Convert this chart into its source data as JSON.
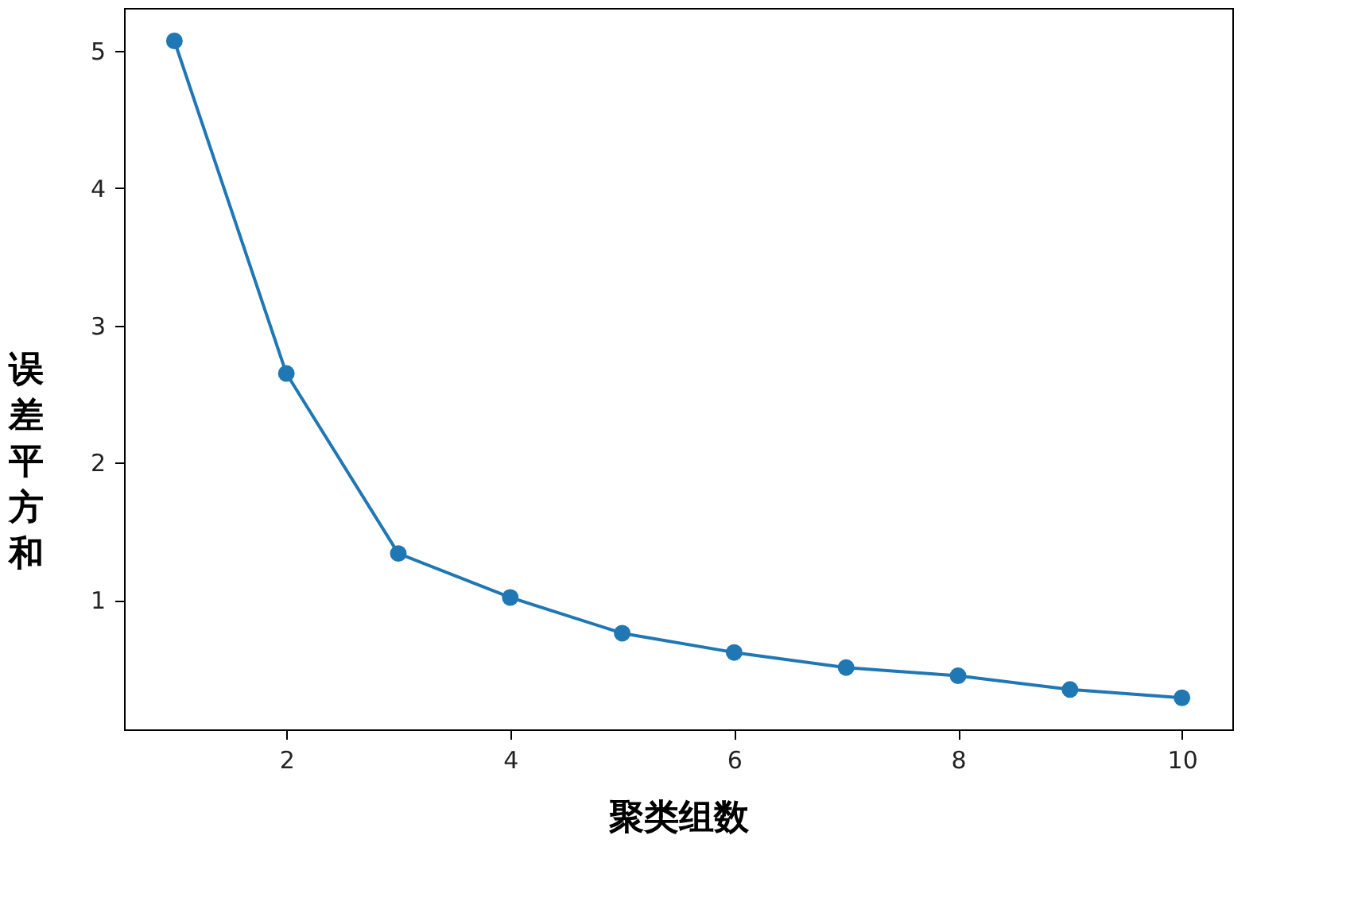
{
  "chart_data": {
    "type": "line",
    "xlabel": "聚类组数",
    "ylabel": "误差平方和",
    "x": [
      1,
      2,
      3,
      4,
      5,
      6,
      7,
      8,
      9,
      10
    ],
    "series": [
      {
        "color": "#1f77b4",
        "values": [
          5.07,
          2.65,
          1.34,
          1.02,
          0.76,
          0.62,
          0.51,
          0.45,
          0.35,
          0.29
        ]
      }
    ],
    "xlim": [
      0.55,
      10.45
    ],
    "xticks": [
      2,
      4,
      6,
      8,
      10
    ],
    "ylim": [
      0.06,
      5.31
    ],
    "yticks": [
      1,
      2,
      3,
      4,
      5
    ],
    "grid": false,
    "legend": false,
    "marker": "circle",
    "line_style": "solid"
  }
}
